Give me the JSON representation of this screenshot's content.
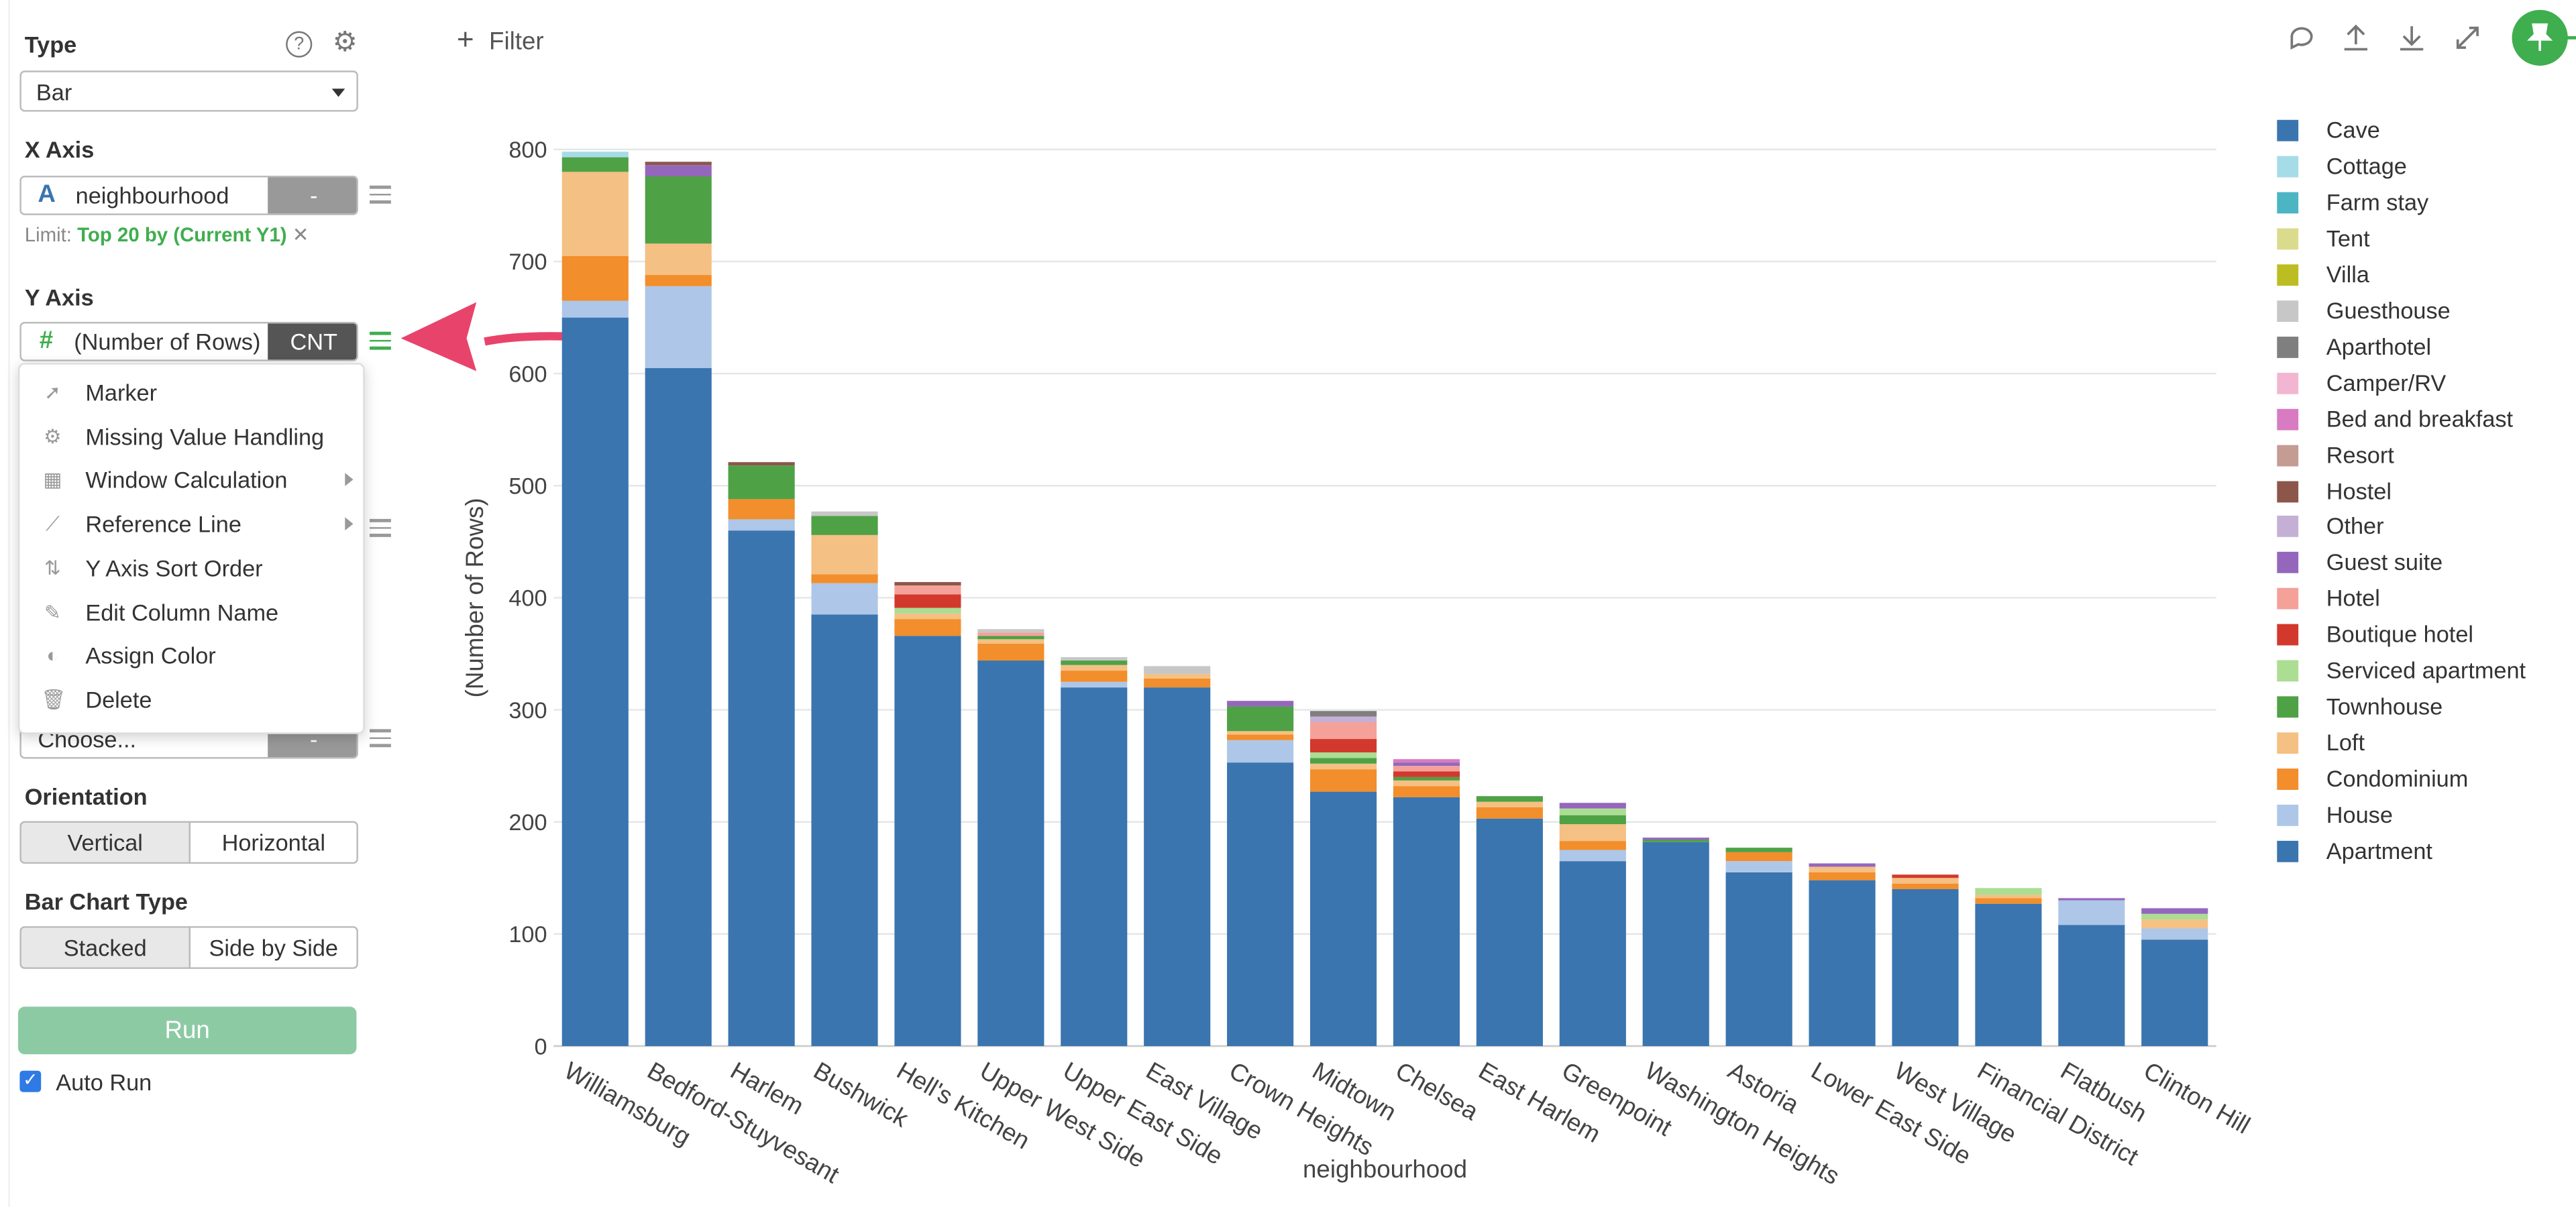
{
  "panel": {
    "type_label": "Type",
    "type_value": "Bar",
    "x_axis_label": "X Axis",
    "x_axis_column": "neighbourhood",
    "x_axis_type_icon": "A",
    "x_axis_button": "-",
    "limit_prefix": "Limit:",
    "limit_value": "Top 20 by (Current Y1)",
    "limit_remove": "✕",
    "y_axis_label": "Y Axis",
    "y_axis_type_icon": "#",
    "y_axis_column": "(Number of Rows)",
    "y_axis_agg": "CNT",
    "choose_placeholder": "Choose...",
    "choose_button": "-",
    "orientation_label": "Orientation",
    "orientation_options": [
      "Vertical",
      "Horizontal"
    ],
    "orientation_selected": "Vertical",
    "bar_type_label": "Bar Chart Type",
    "bar_type_options": [
      "Stacked",
      "Side by Side"
    ],
    "bar_type_selected": "Stacked",
    "run_label": "Run",
    "auto_run_label": "Auto Run",
    "auto_run_checked": true
  },
  "context_menu": {
    "items": [
      {
        "label": "Marker",
        "icon": "cursor-icon",
        "submenu": false
      },
      {
        "label": "Missing Value Handling",
        "icon": "gear-icon",
        "submenu": false
      },
      {
        "label": "Window Calculation",
        "icon": "table-icon",
        "submenu": true
      },
      {
        "label": "Reference Line",
        "icon": "line-chart-icon",
        "submenu": true
      },
      {
        "label": "Y Axis Sort Order",
        "icon": "sort-icon",
        "submenu": false
      },
      {
        "label": "Edit Column Name",
        "icon": "edit-icon",
        "submenu": false
      },
      {
        "label": "Assign Color",
        "icon": "palette-icon",
        "submenu": false
      },
      {
        "label": "Delete",
        "icon": "trash-icon",
        "submenu": false
      }
    ]
  },
  "toolbar": {
    "filter_label": "Filter",
    "icons": [
      "comment-icon",
      "upload-icon",
      "download-icon",
      "expand-icon",
      "pin-icon"
    ]
  },
  "colors": {
    "accent_green": "#3fae4e",
    "run_button": "#8ccaa4",
    "arrow": "#e8446b",
    "pin_button": "#3fae4e"
  },
  "chart_data": {
    "type": "bar",
    "stacked": true,
    "xlabel": "neighbourhood",
    "ylabel": "(Number of Rows)",
    "ylim": [
      0,
      800
    ],
    "yticks": [
      0,
      100,
      200,
      300,
      400,
      500,
      600,
      700,
      800
    ],
    "grid": true,
    "legend_position": "right",
    "categories": [
      "Williamsburg",
      "Bedford-Stuyvesant",
      "Harlem",
      "Bushwick",
      "Hell's Kitchen",
      "Upper West Side",
      "Upper East Side",
      "East Village",
      "Crown Heights",
      "Midtown",
      "Chelsea",
      "East Harlem",
      "Greenpoint",
      "Washington Heights",
      "Astoria",
      "Lower East Side",
      "West Village",
      "Financial District",
      "Flatbush",
      "Clinton Hill"
    ],
    "legend": [
      "Cave",
      "Cottage",
      "Farm stay",
      "Tent",
      "Villa",
      "Guesthouse",
      "Aparthotel",
      "Camper/RV",
      "Bed and breakfast",
      "Resort",
      "Hostel",
      "Other",
      "Guest suite",
      "Hotel",
      "Boutique hotel",
      "Serviced apartment",
      "Townhouse",
      "Loft",
      "Condominium",
      "House",
      "Apartment"
    ],
    "series": [
      {
        "name": "Apartment",
        "color": "#3a75af",
        "values": [
          650,
          605,
          460,
          385,
          366,
          344,
          320,
          320,
          253,
          227,
          222,
          203,
          165,
          182,
          155,
          148,
          140,
          127,
          108,
          95
        ]
      },
      {
        "name": "House",
        "color": "#aec7e8",
        "values": [
          15,
          73,
          10,
          28,
          0,
          0,
          5,
          0,
          20,
          0,
          0,
          0,
          10,
          0,
          10,
          0,
          0,
          0,
          22,
          10
        ]
      },
      {
        "name": "Condominium",
        "color": "#f28e2b",
        "values": [
          40,
          10,
          18,
          8,
          15,
          15,
          10,
          8,
          5,
          20,
          10,
          10,
          8,
          0,
          8,
          7,
          5,
          5,
          0,
          0
        ]
      },
      {
        "name": "Loft",
        "color": "#f5c083",
        "values": [
          75,
          28,
          0,
          35,
          5,
          4,
          5,
          4,
          3,
          5,
          5,
          5,
          15,
          0,
          0,
          5,
          5,
          3,
          0,
          8
        ]
      },
      {
        "name": "Townhouse",
        "color": "#4fa145",
        "values": [
          13,
          60,
          30,
          17,
          0,
          3,
          4,
          0,
          22,
          5,
          3,
          5,
          8,
          2,
          4,
          0,
          0,
          0,
          0,
          0
        ]
      },
      {
        "name": "Serviced apartment",
        "color": "#abdd93",
        "values": [
          0,
          0,
          0,
          0,
          5,
          0,
          0,
          0,
          0,
          5,
          0,
          0,
          6,
          0,
          0,
          0,
          0,
          6,
          0,
          5
        ]
      },
      {
        "name": "Boutique hotel",
        "color": "#d2392c",
        "values": [
          0,
          0,
          0,
          0,
          12,
          0,
          0,
          0,
          0,
          12,
          5,
          0,
          0,
          0,
          0,
          0,
          3,
          0,
          0,
          0
        ]
      },
      {
        "name": "Hotel",
        "color": "#f4a19a",
        "values": [
          0,
          0,
          0,
          0,
          8,
          3,
          0,
          0,
          0,
          15,
          5,
          0,
          0,
          0,
          0,
          0,
          0,
          0,
          0,
          0
        ]
      },
      {
        "name": "Guest suite",
        "color": "#9467bd",
        "values": [
          0,
          10,
          0,
          0,
          0,
          0,
          0,
          0,
          5,
          0,
          3,
          0,
          5,
          2,
          0,
          3,
          0,
          0,
          2,
          5
        ]
      },
      {
        "name": "Other",
        "color": "#c5b0d5",
        "values": [
          0,
          0,
          0,
          0,
          0,
          0,
          0,
          0,
          0,
          5,
          0,
          0,
          0,
          0,
          0,
          0,
          0,
          0,
          0,
          0
        ]
      },
      {
        "name": "Hostel",
        "color": "#8c564b",
        "values": [
          0,
          3,
          3,
          0,
          3,
          0,
          0,
          0,
          0,
          0,
          0,
          0,
          0,
          0,
          0,
          0,
          0,
          0,
          0,
          0
        ]
      },
      {
        "name": "Resort",
        "color": "#c49c94",
        "values": [
          0,
          0,
          0,
          0,
          0,
          0,
          0,
          0,
          0,
          0,
          0,
          0,
          0,
          0,
          0,
          0,
          0,
          0,
          0,
          0
        ]
      },
      {
        "name": "Bed and breakfast",
        "color": "#d87bc2",
        "values": [
          0,
          0,
          0,
          0,
          0,
          0,
          0,
          0,
          0,
          0,
          3,
          0,
          0,
          0,
          0,
          0,
          0,
          0,
          0,
          0
        ]
      },
      {
        "name": "Camper/RV",
        "color": "#f2b6d2",
        "values": [
          0,
          0,
          0,
          0,
          0,
          0,
          0,
          0,
          0,
          0,
          0,
          0,
          0,
          0,
          0,
          0,
          0,
          0,
          0,
          0
        ]
      },
      {
        "name": "Aparthotel",
        "color": "#7f7f7f",
        "values": [
          0,
          0,
          0,
          0,
          0,
          0,
          0,
          0,
          0,
          5,
          0,
          0,
          0,
          0,
          0,
          0,
          0,
          0,
          0,
          0
        ]
      },
      {
        "name": "Guesthouse",
        "color": "#c7c7c7",
        "values": [
          0,
          0,
          0,
          4,
          0,
          3,
          3,
          7,
          0,
          0,
          0,
          0,
          0,
          0,
          0,
          0,
          0,
          0,
          0,
          0
        ]
      },
      {
        "name": "Villa",
        "color": "#bcbd22",
        "values": [
          0,
          0,
          0,
          0,
          0,
          0,
          0,
          0,
          0,
          0,
          0,
          0,
          0,
          0,
          0,
          0,
          0,
          0,
          0,
          0
        ]
      },
      {
        "name": "Tent",
        "color": "#dbdb8d",
        "values": [
          0,
          0,
          0,
          0,
          0,
          0,
          0,
          0,
          0,
          0,
          0,
          0,
          0,
          0,
          0,
          0,
          0,
          0,
          0,
          0
        ]
      },
      {
        "name": "Farm stay",
        "color": "#4cb5c4",
        "values": [
          0,
          0,
          0,
          0,
          0,
          0,
          0,
          0,
          0,
          0,
          0,
          0,
          0,
          0,
          0,
          0,
          0,
          0,
          0,
          0
        ]
      },
      {
        "name": "Cottage",
        "color": "#a6dbe8",
        "values": [
          5,
          0,
          0,
          0,
          0,
          0,
          0,
          0,
          0,
          0,
          0,
          0,
          0,
          0,
          0,
          0,
          0,
          0,
          0,
          0
        ]
      },
      {
        "name": "Cave",
        "color": "#3a75af",
        "values": [
          0,
          0,
          0,
          0,
          0,
          0,
          0,
          0,
          0,
          0,
          0,
          0,
          0,
          0,
          0,
          0,
          0,
          0,
          0,
          0
        ]
      }
    ]
  }
}
